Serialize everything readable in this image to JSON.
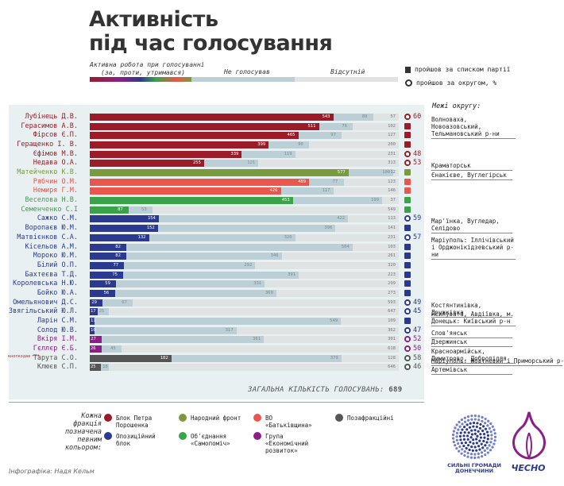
{
  "title_line1": "Активність",
  "title_line2": "під час голосування",
  "legend_top": {
    "active": "Активна робота при голосуванні (за, проти, утримався)",
    "active_line1": "Активна робота при голосуванні",
    "active_line2": "(за, проти, утримався)",
    "not_voting": "Не голосував",
    "absent": "Відсутній",
    "list_label": "пройшов за списком партії",
    "district_label": "пройшов за округом, %"
  },
  "districts_header": "Межі округу:",
  "total_label": "ЗАГАЛЬНА КІЛЬКІСТЬ ГОЛОСУВАНЬ:",
  "total_value": "689",
  "fraction_note": "Кожна фракція позначена певним кольором:",
  "factions": [
    {
      "id": "bpp",
      "label": "Блок Петра Порошенка",
      "color": "#9b1c28"
    },
    {
      "id": "nf",
      "label": "Народний фронт",
      "color": "#7a9a3e"
    },
    {
      "id": "bat",
      "label": "ВО «Батьківщина»",
      "color": "#e9564c"
    },
    {
      "id": "ind",
      "label": "Позафракційні",
      "color": "#555555"
    },
    {
      "id": "ob",
      "label": "Опозиційний блок",
      "color": "#2b3a8f"
    },
    {
      "id": "sam",
      "label": "Об'єднання «Самопоміч»",
      "color": "#3aa349"
    },
    {
      "id": "ver",
      "label": "Група «Економічний розвиток»",
      "color": "#8b1f86"
    }
  ],
  "faction_colors": {
    "bpp": "#9b1c28",
    "nf": "#7a9a3e",
    "bat": "#e9564c",
    "ind": "#555555",
    "ob": "#2b3a8f",
    "sam": "#3aa349",
    "ver": "#8b1f86"
  },
  "annotation": "кнопкодав",
  "credit": "Інфографіка: Надя Кельм",
  "logo1": "СИЛЬНІ ГРОМАДИ ДОНЕЧЧИНИ",
  "logo2": "ЧЕСНО",
  "chart_data": {
    "type": "bar",
    "title": "Активність під час голосування",
    "total_votes": 689,
    "series_names": [
      "Активна робота при голосуванні (за, проти, утримався)",
      "Не голосував",
      "Відсутній"
    ],
    "deputies": [
      {
        "name": "Лубінець Д.В.",
        "faction": "bpp",
        "active": 543,
        "not_voting": 89,
        "absent": 57,
        "mandate": "district",
        "percent": "60"
      },
      {
        "name": "Герасимов А.В.",
        "faction": "bpp",
        "active": 511,
        "not_voting": 76,
        "absent": 102,
        "mandate": "list",
        "percent": ""
      },
      {
        "name": "Фірсов Є.П.",
        "faction": "bpp",
        "active": 465,
        "not_voting": 97,
        "absent": 127,
        "mandate": "list",
        "percent": ""
      },
      {
        "name": "Геращенко І. В.",
        "faction": "bpp",
        "active": 399,
        "not_voting": 90,
        "absent": 200,
        "mandate": "list",
        "percent": ""
      },
      {
        "name": "Єфімов М.В.",
        "faction": "bpp",
        "active": 339,
        "not_voting": 119,
        "absent": 231,
        "mandate": "district",
        "percent": "48"
      },
      {
        "name": "Недава О.А.",
        "faction": "bpp",
        "active": 255,
        "not_voting": 121,
        "absent": 313,
        "mandate": "district",
        "percent": "53"
      },
      {
        "name": "Матейченко К.В.",
        "faction": "nf",
        "active": 577,
        "not_voting": 100,
        "absent": 12,
        "mandate": "list",
        "percent": ""
      },
      {
        "name": "Рябчин О.М.",
        "faction": "bat",
        "active": 489,
        "not_voting": 77,
        "absent": 123,
        "mandate": "list",
        "percent": ""
      },
      {
        "name": "Немиря Г.М.",
        "faction": "bat",
        "active": 426,
        "not_voting": 117,
        "absent": 146,
        "mandate": "list",
        "percent": ""
      },
      {
        "name": "Веселова Н.В.",
        "faction": "sam",
        "active": 453,
        "not_voting": 199,
        "absent": 37,
        "mandate": "list",
        "percent": ""
      },
      {
        "name": "Семенченко С.І",
        "faction": "sam",
        "active": 87,
        "not_voting": 53,
        "absent": 549,
        "mandate": "list",
        "percent": ""
      },
      {
        "name": "Сажко С.М.",
        "faction": "ob",
        "active": 154,
        "not_voting": 422,
        "absent": 113,
        "mandate": "district",
        "percent": "59"
      },
      {
        "name": "Воропаєв Ю.М.",
        "faction": "ob",
        "active": 152,
        "not_voting": 396,
        "absent": 141,
        "mandate": "list",
        "percent": ""
      },
      {
        "name": "Матвієнков С.А.",
        "faction": "ob",
        "active": 132,
        "not_voting": 326,
        "absent": 231,
        "mandate": "district",
        "percent": "57"
      },
      {
        "name": "Кісельов А.М.",
        "faction": "ob",
        "active": 82,
        "not_voting": 504,
        "absent": 103,
        "mandate": "list",
        "percent": ""
      },
      {
        "name": "Мороко Ю.М.",
        "faction": "ob",
        "active": 82,
        "not_voting": 346,
        "absent": 261,
        "mandate": "list",
        "percent": ""
      },
      {
        "name": "Білий О.П.",
        "faction": "ob",
        "active": 77,
        "not_voting": 292,
        "absent": 320,
        "mandate": "list",
        "percent": ""
      },
      {
        "name": "Бахтеєва Т.Д.",
        "faction": "ob",
        "active": 75,
        "not_voting": 391,
        "absent": 223,
        "mandate": "list",
        "percent": ""
      },
      {
        "name": "Королевська Н.Ю.",
        "faction": "ob",
        "active": 59,
        "not_voting": 331,
        "absent": 299,
        "mandate": "list",
        "percent": ""
      },
      {
        "name": "Бойко Ю.А.",
        "faction": "ob",
        "active": 56,
        "not_voting": 360,
        "absent": 273,
        "mandate": "list",
        "percent": ""
      },
      {
        "name": "Омельянович Д.С.",
        "faction": "ob",
        "active": 29,
        "not_voting": 67,
        "absent": 593,
        "mandate": "district",
        "percent": "49"
      },
      {
        "name": "Звягільський Ю.Л.",
        "faction": "ob",
        "active": 17,
        "not_voting": 25,
        "absent": 647,
        "mandate": "district",
        "percent": "45"
      },
      {
        "name": "Ларін С.М.",
        "faction": "ob",
        "active": 11,
        "not_voting": 549,
        "absent": 109,
        "mandate": "list",
        "percent": ""
      },
      {
        "name": "Солод Ю.В.",
        "faction": "ob",
        "active": 10,
        "not_voting": 317,
        "absent": 362,
        "mandate": "district",
        "percent": "47"
      },
      {
        "name": "Вкіря І.М.",
        "faction": "ver",
        "active": 27,
        "not_voting": 361,
        "absent": 301,
        "mandate": "district",
        "percent": "52"
      },
      {
        "name": "Гєллєр Є.Б.",
        "faction": "ver",
        "active": 26,
        "not_voting": 45,
        "absent": 618,
        "mandate": "district",
        "percent": "50"
      },
      {
        "name": "Тарута С.О.",
        "faction": "ind",
        "active": 182,
        "not_voting": 379,
        "absent": 128,
        "mandate": "district",
        "percent": "58"
      },
      {
        "name": "Клюєв С.П.",
        "faction": "ind",
        "active": 25,
        "not_voting": 18,
        "absent": 646,
        "mandate": "district",
        "percent": "46"
      }
    ]
  },
  "districts": [
    {
      "text": "Волноваха, Новоазовський, Тельмановський р-ни",
      "row": 0
    },
    {
      "text": "Краматорськ",
      "row": 5
    },
    {
      "text": "Єнакієве, Вуглегірськ",
      "row": 6
    },
    {
      "text": "Мар'їнка, Вугледар, Селідово",
      "row": 11
    },
    {
      "text": "Маріуполь: Іллічівський і Орджонікідзевський р-ни",
      "row": 13
    },
    {
      "text": "Костянтинівка, Дружківка",
      "row": 20
    },
    {
      "text": "Ясинувата, Авдіївка, м. Донецьк: Київський р-н",
      "row": 21
    },
    {
      "text": "Слов'янськ",
      "row": 23
    },
    {
      "text": "Дзержинськ",
      "row": 24
    },
    {
      "text": "Красноармійськ, Димитрово, Добропілля",
      "row": 25
    },
    {
      "text": "Маріуполь: Жовтневий і Приморський р-ни.",
      "row": 26
    },
    {
      "text": "Артемівськ",
      "row": 27
    }
  ]
}
